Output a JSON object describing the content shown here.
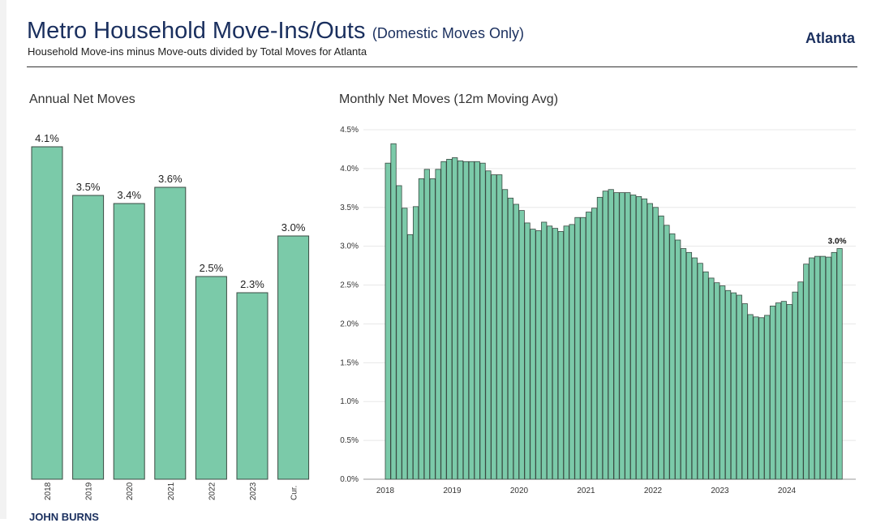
{
  "header": {
    "title": "Metro Household Move-Ins/Outs",
    "title_qualifier": "(Domestic Moves Only)",
    "subtitle": "Household Move-ins minus Move-outs divided by Total Moves for Atlanta",
    "market": "Atlanta"
  },
  "footer": {
    "brand": "JOHN BURNS"
  },
  "colors": {
    "bar_fill": "#7bcaa9",
    "bar_stroke": "#3a4a42",
    "title": "#1a2f5e",
    "grid": "#e8e8e8"
  },
  "chart_data": [
    {
      "type": "bar",
      "title": "Annual Net Moves",
      "categories": [
        "2018",
        "2019",
        "2020",
        "2021",
        "2022",
        "2023",
        "Cur."
      ],
      "values": [
        4.1,
        3.5,
        3.4,
        3.6,
        2.5,
        2.3,
        3.0
      ],
      "labels": [
        "4.1%",
        "3.5%",
        "3.4%",
        "3.6%",
        "2.5%",
        "2.3%",
        "3.0%"
      ],
      "y_axis_shown": false,
      "ylim": [
        0,
        4.1
      ]
    },
    {
      "type": "bar",
      "title": "Monthly Net Moves (12m Moving Avg)",
      "x_start": "2018-01",
      "x_ticks": [
        "2018",
        "2019",
        "2020",
        "2021",
        "2022",
        "2023",
        "2024"
      ],
      "y_ticks": [
        "0.0%",
        "0.5%",
        "1.0%",
        "1.5%",
        "2.0%",
        "2.5%",
        "3.0%",
        "3.5%",
        "4.0%",
        "4.5%"
      ],
      "ylim": [
        0,
        4.5
      ],
      "grid": true,
      "last_label": "3.0%",
      "values": [
        4.07,
        4.32,
        3.78,
        3.49,
        3.15,
        3.51,
        3.87,
        3.99,
        3.87,
        3.99,
        4.09,
        4.12,
        4.14,
        4.1,
        4.09,
        4.09,
        4.09,
        4.07,
        3.97,
        3.92,
        3.92,
        3.73,
        3.62,
        3.54,
        3.46,
        3.3,
        3.22,
        3.2,
        3.31,
        3.26,
        3.23,
        3.19,
        3.26,
        3.28,
        3.37,
        3.37,
        3.44,
        3.49,
        3.63,
        3.71,
        3.73,
        3.69,
        3.69,
        3.69,
        3.66,
        3.64,
        3.61,
        3.55,
        3.5,
        3.39,
        3.27,
        3.16,
        3.08,
        2.97,
        2.92,
        2.85,
        2.78,
        2.67,
        2.59,
        2.53,
        2.49,
        2.43,
        2.4,
        2.37,
        2.26,
        2.12,
        2.09,
        2.08,
        2.11,
        2.23,
        2.27,
        2.29,
        2.25,
        2.41,
        2.54,
        2.77,
        2.85,
        2.87,
        2.87,
        2.86,
        2.92,
        2.97
      ]
    }
  ]
}
